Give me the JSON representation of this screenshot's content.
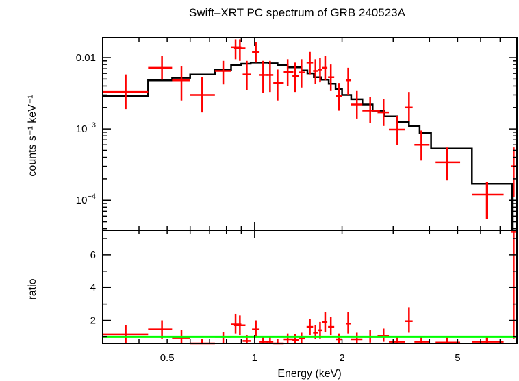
{
  "chart_data": {
    "title": "Swift–XRT PC spectrum of GRB 240523A",
    "xlabel": "Energy (keV)",
    "xscale": "log",
    "xlim": [
      0.3,
      8.0
    ],
    "xticks": [
      {
        "v": 0.5,
        "label": "0.5"
      },
      {
        "v": 1,
        "label": "1"
      },
      {
        "v": 2,
        "label": "2"
      },
      {
        "v": 5,
        "label": "5"
      }
    ],
    "colors": {
      "data": "#ff0000",
      "model": "#000000",
      "unity": "#00ff00",
      "axes": "#000000"
    },
    "panels": [
      {
        "type": "spectrum",
        "ylabel": "counts s⁻¹ keV⁻¹",
        "yscale": "log",
        "ylim": [
          3.8e-05,
          0.019
        ],
        "yticks": [
          {
            "v": 0.01,
            "base": "0.01",
            "exp": ""
          },
          {
            "v": 0.001,
            "base": "10",
            "exp": "−3"
          },
          {
            "v": 0.0001,
            "base": "10",
            "exp": "−4"
          }
        ],
        "model_steps": [
          {
            "x0": 0.3,
            "x1": 0.43,
            "y": 0.0029
          },
          {
            "x0": 0.43,
            "x1": 0.52,
            "y": 0.0048
          },
          {
            "x0": 0.52,
            "x1": 0.6,
            "y": 0.0052
          },
          {
            "x0": 0.6,
            "x1": 0.73,
            "y": 0.0058
          },
          {
            "x0": 0.73,
            "x1": 0.83,
            "y": 0.0067
          },
          {
            "x0": 0.83,
            "x1": 0.9,
            "y": 0.0078
          },
          {
            "x0": 0.9,
            "x1": 0.97,
            "y": 0.0082
          },
          {
            "x0": 0.97,
            "x1": 1.05,
            "y": 0.0085
          },
          {
            "x0": 1.05,
            "x1": 1.12,
            "y": 0.0085
          },
          {
            "x0": 1.12,
            "x1": 1.2,
            "y": 0.0083
          },
          {
            "x0": 1.2,
            "x1": 1.3,
            "y": 0.0079
          },
          {
            "x0": 1.3,
            "x1": 1.45,
            "y": 0.0073
          },
          {
            "x0": 1.45,
            "x1": 1.52,
            "y": 0.0066
          },
          {
            "x0": 1.52,
            "x1": 1.6,
            "y": 0.006
          },
          {
            "x0": 1.6,
            "x1": 1.7,
            "y": 0.0053
          },
          {
            "x0": 1.7,
            "x1": 1.8,
            "y": 0.0049
          },
          {
            "x0": 1.8,
            "x1": 1.9,
            "y": 0.0043
          },
          {
            "x0": 1.9,
            "x1": 2.0,
            "y": 0.0036
          },
          {
            "x0": 2.0,
            "x1": 2.15,
            "y": 0.003
          },
          {
            "x0": 2.15,
            "x1": 2.35,
            "y": 0.0026
          },
          {
            "x0": 2.35,
            "x1": 2.55,
            "y": 0.0022
          },
          {
            "x0": 2.55,
            "x1": 2.8,
            "y": 0.0018
          },
          {
            "x0": 2.8,
            "x1": 3.1,
            "y": 0.0015
          },
          {
            "x0": 3.1,
            "x1": 3.4,
            "y": 0.00125
          },
          {
            "x0": 3.4,
            "x1": 3.7,
            "y": 0.0011
          },
          {
            "x0": 3.7,
            "x1": 4.05,
            "y": 0.00088
          },
          {
            "x0": 4.05,
            "x1": 5.6,
            "y": 0.00053
          },
          {
            "x0": 5.6,
            "x1": 7.7,
            "y": 0.00017
          },
          {
            "x0": 7.7,
            "x1": 7.7,
            "y": 3.8e-05
          }
        ],
        "points": [
          {
            "x": 0.36,
            "xlo": 0.3,
            "xhi": 0.43,
            "y": 0.0033,
            "ylo": 0.0019,
            "yhi": 0.0058
          },
          {
            "x": 0.48,
            "xlo": 0.43,
            "xhi": 0.52,
            "y": 0.0072,
            "ylo": 0.0049,
            "yhi": 0.0105
          },
          {
            "x": 0.56,
            "xlo": 0.52,
            "xhi": 0.6,
            "y": 0.0048,
            "ylo": 0.0025,
            "yhi": 0.0075
          },
          {
            "x": 0.66,
            "xlo": 0.6,
            "xhi": 0.73,
            "y": 0.003,
            "ylo": 0.0017,
            "yhi": 0.0053
          },
          {
            "x": 0.78,
            "xlo": 0.73,
            "xhi": 0.83,
            "y": 0.0065,
            "ylo": 0.0042,
            "yhi": 0.009
          },
          {
            "x": 0.86,
            "xlo": 0.83,
            "xhi": 0.9,
            "y": 0.014,
            "ylo": 0.0095,
            "yhi": 0.018
          },
          {
            "x": 0.89,
            "xlo": 0.85,
            "xhi": 0.93,
            "y": 0.0135,
            "ylo": 0.009,
            "yhi": 0.018
          },
          {
            "x": 0.94,
            "xlo": 0.91,
            "xhi": 0.97,
            "y": 0.0058,
            "ylo": 0.0035,
            "yhi": 0.009
          },
          {
            "x": 1.01,
            "xlo": 0.98,
            "xhi": 1.04,
            "y": 0.012,
            "ylo": 0.0085,
            "yhi": 0.0165
          },
          {
            "x": 1.07,
            "xlo": 1.04,
            "xhi": 1.11,
            "y": 0.0057,
            "ylo": 0.0032,
            "yhi": 0.009
          },
          {
            "x": 1.13,
            "xlo": 1.1,
            "xhi": 1.16,
            "y": 0.0057,
            "ylo": 0.0033,
            "yhi": 0.009
          },
          {
            "x": 1.2,
            "xlo": 1.16,
            "xhi": 1.26,
            "y": 0.0044,
            "ylo": 0.0025,
            "yhi": 0.0068
          },
          {
            "x": 1.3,
            "xlo": 1.26,
            "xhi": 1.36,
            "y": 0.0063,
            "ylo": 0.004,
            "yhi": 0.0095
          },
          {
            "x": 1.38,
            "xlo": 1.35,
            "xhi": 1.42,
            "y": 0.0055,
            "ylo": 0.0033,
            "yhi": 0.0085
          },
          {
            "x": 1.45,
            "xlo": 1.42,
            "xhi": 1.49,
            "y": 0.0062,
            "ylo": 0.0038,
            "yhi": 0.0095
          },
          {
            "x": 1.55,
            "xlo": 1.51,
            "xhi": 1.59,
            "y": 0.0085,
            "ylo": 0.0058,
            "yhi": 0.012
          },
          {
            "x": 1.62,
            "xlo": 1.59,
            "xhi": 1.65,
            "y": 0.0065,
            "ylo": 0.0043,
            "yhi": 0.0095
          },
          {
            "x": 1.68,
            "xlo": 1.65,
            "xhi": 1.71,
            "y": 0.0068,
            "ylo": 0.0045,
            "yhi": 0.01
          },
          {
            "x": 1.75,
            "xlo": 1.71,
            "xhi": 1.78,
            "y": 0.0072,
            "ylo": 0.0048,
            "yhi": 0.0105
          },
          {
            "x": 1.83,
            "xlo": 1.79,
            "xhi": 1.88,
            "y": 0.0053,
            "ylo": 0.0034,
            "yhi": 0.008
          },
          {
            "x": 1.95,
            "xlo": 1.9,
            "xhi": 2.0,
            "y": 0.0029,
            "ylo": 0.0018,
            "yhi": 0.0044
          },
          {
            "x": 2.1,
            "xlo": 2.06,
            "xhi": 2.15,
            "y": 0.0048,
            "ylo": 0.003,
            "yhi": 0.0072
          },
          {
            "x": 2.25,
            "xlo": 2.15,
            "xhi": 2.35,
            "y": 0.0022,
            "ylo": 0.0014,
            "yhi": 0.0034
          },
          {
            "x": 2.5,
            "xlo": 2.35,
            "xhi": 2.7,
            "y": 0.0018,
            "ylo": 0.0012,
            "yhi": 0.0028
          },
          {
            "x": 2.78,
            "xlo": 2.65,
            "xhi": 2.9,
            "y": 0.0017,
            "ylo": 0.0011,
            "yhi": 0.0026
          },
          {
            "x": 3.1,
            "xlo": 2.9,
            "xhi": 3.3,
            "y": 0.00098,
            "ylo": 0.0006,
            "yhi": 0.0015
          },
          {
            "x": 3.4,
            "xlo": 3.3,
            "xhi": 3.5,
            "y": 0.002,
            "ylo": 0.0013,
            "yhi": 0.0033
          },
          {
            "x": 3.75,
            "xlo": 3.55,
            "xhi": 4.0,
            "y": 0.0006,
            "ylo": 0.00036,
            "yhi": 0.00095
          },
          {
            "x": 4.6,
            "xlo": 4.2,
            "xhi": 5.1,
            "y": 0.00034,
            "ylo": 0.00019,
            "yhi": 0.00055
          },
          {
            "x": 6.3,
            "xlo": 5.6,
            "xhi": 7.2,
            "y": 0.00012,
            "ylo": 5.5e-05,
            "yhi": 0.00018
          },
          {
            "x": 7.8,
            "xlo": 7.65,
            "xhi": 8.0,
            "y": 0.0003,
            "ylo": 0.00011,
            "yhi": 0.00055
          }
        ]
      },
      {
        "type": "ratio",
        "ylabel": "ratio",
        "yscale": "linear",
        "ylim": [
          0.6,
          7.5
        ],
        "yticks": [
          {
            "v": 2,
            "label": "2"
          },
          {
            "v": 4,
            "label": "4"
          },
          {
            "v": 6,
            "label": "6"
          }
        ],
        "unity": 1.0,
        "points": [
          {
            "x": 0.36,
            "xlo": 0.3,
            "xhi": 0.43,
            "y": 1.15,
            "ylo": 0.6,
            "yhi": 1.7
          },
          {
            "x": 0.48,
            "xlo": 0.43,
            "xhi": 0.52,
            "y": 1.45,
            "ylo": 0.9,
            "yhi": 2.0
          },
          {
            "x": 0.56,
            "xlo": 0.52,
            "xhi": 0.6,
            "y": 0.95,
            "ylo": 0.6,
            "yhi": 1.4
          },
          {
            "x": 0.66,
            "xlo": 0.6,
            "xhi": 0.73,
            "y": 0.55,
            "ylo": 0.3,
            "yhi": 0.85
          },
          {
            "x": 0.78,
            "xlo": 0.73,
            "xhi": 0.83,
            "y": 1.0,
            "ylo": 0.6,
            "yhi": 1.3
          },
          {
            "x": 0.86,
            "xlo": 0.83,
            "xhi": 0.9,
            "y": 1.75,
            "ylo": 1.2,
            "yhi": 2.4
          },
          {
            "x": 0.89,
            "xlo": 0.85,
            "xhi": 0.93,
            "y": 1.7,
            "ylo": 1.1,
            "yhi": 2.3
          },
          {
            "x": 0.94,
            "xlo": 0.91,
            "xhi": 0.97,
            "y": 0.75,
            "ylo": 0.4,
            "yhi": 1.1
          },
          {
            "x": 1.01,
            "xlo": 0.98,
            "xhi": 1.04,
            "y": 1.45,
            "ylo": 1.0,
            "yhi": 2.0
          },
          {
            "x": 1.07,
            "xlo": 1.04,
            "xhi": 1.11,
            "y": 0.7,
            "ylo": 0.4,
            "yhi": 1.05
          },
          {
            "x": 1.13,
            "xlo": 1.1,
            "xhi": 1.16,
            "y": 0.7,
            "ylo": 0.4,
            "yhi": 1.05
          },
          {
            "x": 1.2,
            "xlo": 1.16,
            "xhi": 1.26,
            "y": 0.55,
            "ylo": 0.3,
            "yhi": 0.85
          },
          {
            "x": 1.3,
            "xlo": 1.26,
            "xhi": 1.36,
            "y": 0.85,
            "ylo": 0.55,
            "yhi": 1.2
          },
          {
            "x": 1.38,
            "xlo": 1.35,
            "xhi": 1.42,
            "y": 0.8,
            "ylo": 0.5,
            "yhi": 1.15
          },
          {
            "x": 1.45,
            "xlo": 1.42,
            "xhi": 1.49,
            "y": 0.9,
            "ylo": 0.55,
            "yhi": 1.25
          },
          {
            "x": 1.55,
            "xlo": 1.51,
            "xhi": 1.59,
            "y": 1.6,
            "ylo": 1.1,
            "yhi": 2.1
          },
          {
            "x": 1.62,
            "xlo": 1.59,
            "xhi": 1.65,
            "y": 1.25,
            "ylo": 0.85,
            "yhi": 1.7
          },
          {
            "x": 1.68,
            "xlo": 1.65,
            "xhi": 1.71,
            "y": 1.4,
            "ylo": 0.9,
            "yhi": 1.9
          },
          {
            "x": 1.75,
            "xlo": 1.71,
            "xhi": 1.78,
            "y": 1.9,
            "ylo": 1.3,
            "yhi": 2.5
          },
          {
            "x": 1.83,
            "xlo": 1.79,
            "xhi": 1.88,
            "y": 1.6,
            "ylo": 1.1,
            "yhi": 2.2
          },
          {
            "x": 1.95,
            "xlo": 1.9,
            "xhi": 2.0,
            "y": 0.85,
            "ylo": 0.5,
            "yhi": 1.2
          },
          {
            "x": 2.1,
            "xlo": 2.06,
            "xhi": 2.15,
            "y": 1.8,
            "ylo": 1.2,
            "yhi": 2.5
          },
          {
            "x": 2.25,
            "xlo": 2.15,
            "xhi": 2.35,
            "y": 0.85,
            "ylo": 0.55,
            "yhi": 1.25
          },
          {
            "x": 2.5,
            "xlo": 2.35,
            "xhi": 2.7,
            "y": 1.0,
            "ylo": 0.65,
            "yhi": 1.4
          },
          {
            "x": 2.78,
            "xlo": 2.65,
            "xhi": 2.9,
            "y": 1.05,
            "ylo": 0.7,
            "yhi": 1.5
          },
          {
            "x": 3.1,
            "xlo": 2.9,
            "xhi": 3.3,
            "y": 0.7,
            "ylo": 0.45,
            "yhi": 1.0
          },
          {
            "x": 3.4,
            "xlo": 3.3,
            "xhi": 3.5,
            "y": 1.95,
            "ylo": 1.25,
            "yhi": 2.8
          },
          {
            "x": 3.75,
            "xlo": 3.55,
            "xhi": 4.0,
            "y": 0.7,
            "ylo": 0.45,
            "yhi": 1.0
          },
          {
            "x": 4.6,
            "xlo": 4.2,
            "xhi": 5.1,
            "y": 0.65,
            "ylo": 0.4,
            "yhi": 0.95
          },
          {
            "x": 6.3,
            "xlo": 5.6,
            "xhi": 7.2,
            "y": 0.7,
            "ylo": 0.35,
            "yhi": 1.0
          },
          {
            "x": 7.8,
            "xlo": 7.65,
            "xhi": 8.0,
            "y": 7.4,
            "ylo": 0.9,
            "yhi": 7.5
          }
        ]
      }
    ]
  }
}
